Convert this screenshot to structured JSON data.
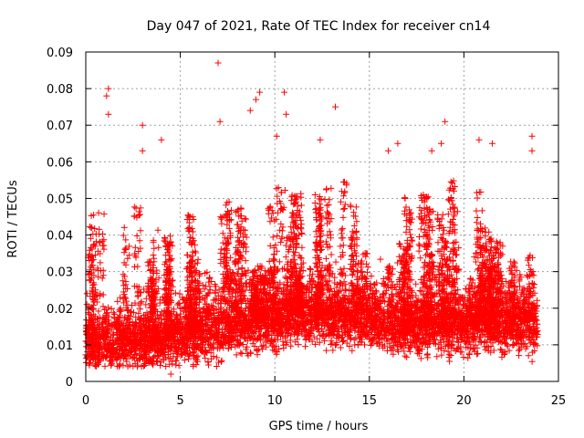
{
  "chart_data": {
    "type": "scatter",
    "title": "Day 047 of 2021, Rate Of TEC Index for receiver cn14",
    "xlabel": "GPS time / hours",
    "ylabel": "ROTI / TECUs",
    "xlim": [
      0,
      25
    ],
    "ylim": [
      0,
      0.09
    ],
    "x_ticks": [
      0,
      5,
      10,
      15,
      20,
      25
    ],
    "x_tick_labels": [
      "0",
      "5",
      "10",
      "15",
      "20",
      "25"
    ],
    "y_ticks": [
      0,
      0.01,
      0.02,
      0.03,
      0.04,
      0.05,
      0.06,
      0.07,
      0.08,
      0.09
    ],
    "y_tick_labels": [
      "0",
      "0.01",
      "0.02",
      "0.03",
      "0.04",
      "0.05",
      "0.06",
      "0.07",
      "0.08",
      "0.09"
    ],
    "grid": true,
    "marker": "+",
    "marker_color": "#ff0000",
    "x_data_range": [
      0,
      23.9
    ],
    "base_level_profile": [
      {
        "x": 0,
        "y": 0.01
      },
      {
        "x": 4,
        "y": 0.011
      },
      {
        "x": 5,
        "y": 0.012
      },
      {
        "x": 8,
        "y": 0.015
      },
      {
        "x": 10,
        "y": 0.017
      },
      {
        "x": 12,
        "y": 0.018
      },
      {
        "x": 14,
        "y": 0.017
      },
      {
        "x": 17,
        "y": 0.015
      },
      {
        "x": 20,
        "y": 0.015
      },
      {
        "x": 23.9,
        "y": 0.016
      }
    ],
    "peak_points": [
      {
        "x": 1.2,
        "y": 0.08
      },
      {
        "x": 1.1,
        "y": 0.078
      },
      {
        "x": 1.2,
        "y": 0.073
      },
      {
        "x": 3.0,
        "y": 0.07
      },
      {
        "x": 3.0,
        "y": 0.063
      },
      {
        "x": 4.0,
        "y": 0.066
      },
      {
        "x": 7.0,
        "y": 0.087
      },
      {
        "x": 7.1,
        "y": 0.071
      },
      {
        "x": 8.7,
        "y": 0.074
      },
      {
        "x": 9.0,
        "y": 0.077
      },
      {
        "x": 9.2,
        "y": 0.079
      },
      {
        "x": 10.1,
        "y": 0.067
      },
      {
        "x": 10.5,
        "y": 0.079
      },
      {
        "x": 10.6,
        "y": 0.073
      },
      {
        "x": 12.4,
        "y": 0.066
      },
      {
        "x": 13.2,
        "y": 0.075
      },
      {
        "x": 16.0,
        "y": 0.063
      },
      {
        "x": 16.5,
        "y": 0.065
      },
      {
        "x": 18.3,
        "y": 0.063
      },
      {
        "x": 19.0,
        "y": 0.071
      },
      {
        "x": 18.8,
        "y": 0.065
      },
      {
        "x": 20.8,
        "y": 0.066
      },
      {
        "x": 21.5,
        "y": 0.065
      },
      {
        "x": 23.6,
        "y": 0.067
      },
      {
        "x": 23.6,
        "y": 0.063
      },
      {
        "x": 4.5,
        "y": 0.002
      }
    ]
  }
}
